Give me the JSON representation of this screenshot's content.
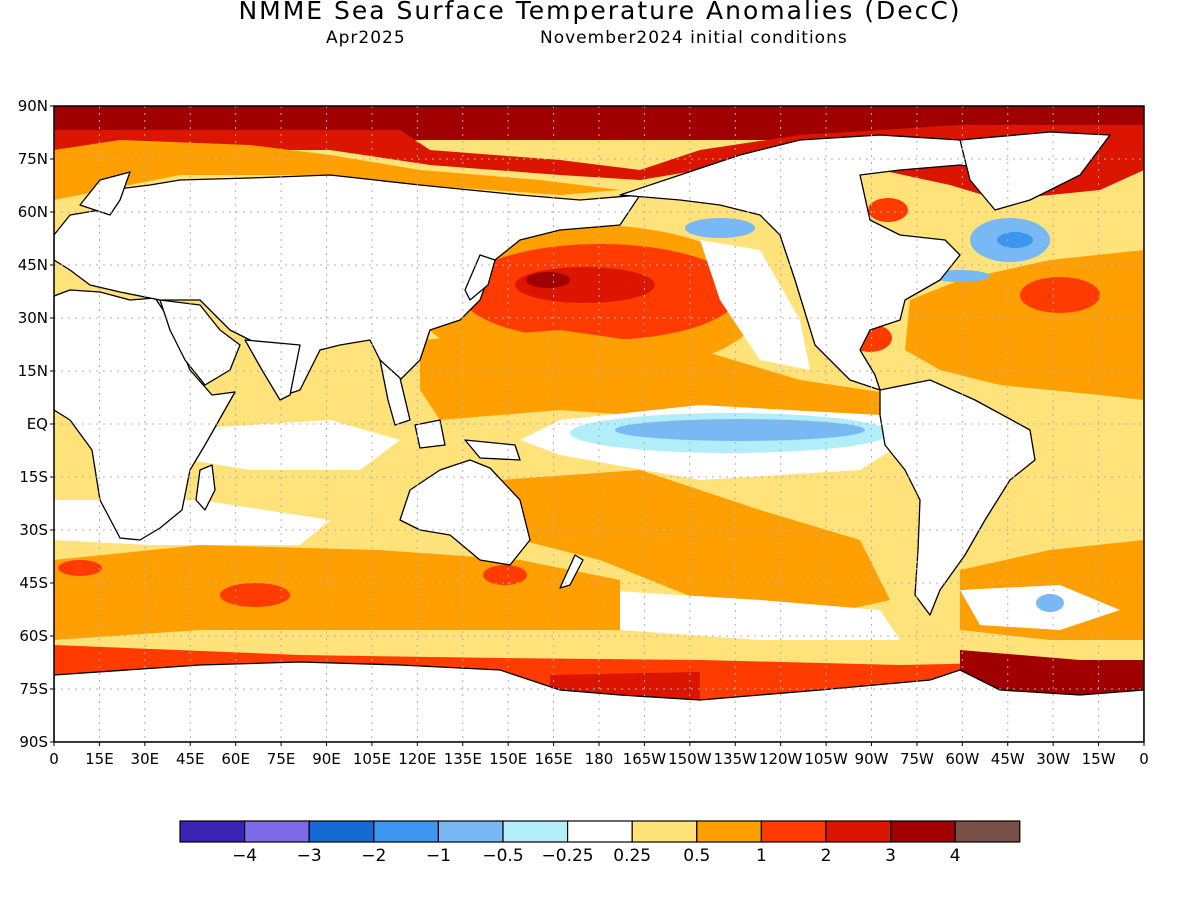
{
  "header": {
    "title": "NMME Sea Surface Temperature Anomalies (DecC)",
    "target_month": "Apr2025",
    "init": "November2024 initial conditions"
  },
  "axes": {
    "lat_labels": [
      "90N",
      "75N",
      "60N",
      "45N",
      "30N",
      "15N",
      "EQ",
      "15S",
      "30S",
      "45S",
      "60S",
      "75S",
      "90S"
    ],
    "lon_labels": [
      "0",
      "15E",
      "30E",
      "45E",
      "60E",
      "75E",
      "90E",
      "105E",
      "120E",
      "135E",
      "150E",
      "165E",
      "180",
      "165W",
      "150W",
      "135W",
      "120W",
      "105W",
      "90W",
      "75W",
      "60W",
      "45W",
      "30W",
      "15W",
      "0"
    ]
  },
  "colorbar": {
    "colors": [
      "#3a22b4",
      "#7d6ae9",
      "#1668d2",
      "#3c96f0",
      "#78b8f5",
      "#b1eefa",
      "#ffffff",
      "#ffe27a",
      "#ffa000",
      "#ff3b00",
      "#dc1500",
      "#a10000",
      "#7a5046"
    ],
    "labels": [
      "−4",
      "−3",
      "−2",
      "−1",
      "−0.5",
      "−0.25",
      "0.25",
      "0.5",
      "1",
      "2",
      "3",
      "4"
    ]
  },
  "palette": {
    "land": "#ffffff",
    "ocean_default": "#ffe27a",
    "coast": "#000000"
  }
}
